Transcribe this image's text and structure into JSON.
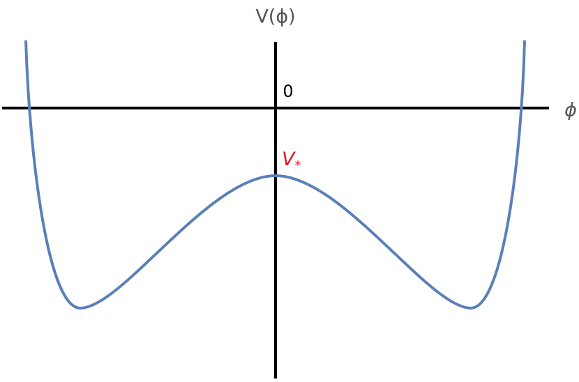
{
  "axes": {
    "y_label": "V(ϕ)",
    "x_label": "ϕ",
    "origin_label": "0"
  },
  "annotation": {
    "label": "V",
    "subscript": "*"
  }
}
